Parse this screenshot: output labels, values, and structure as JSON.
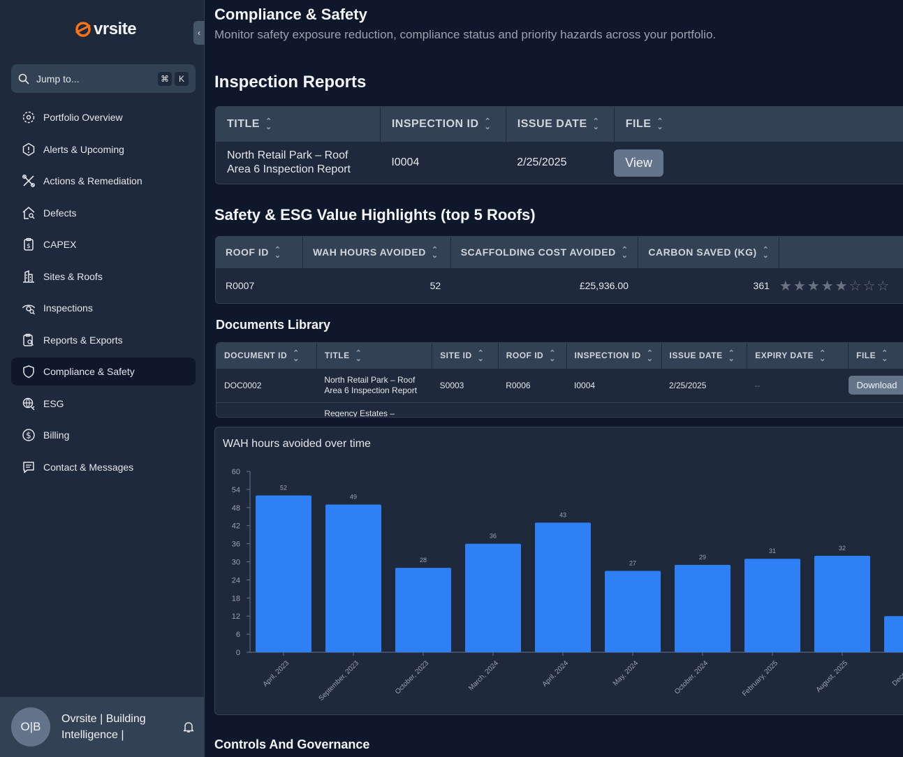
{
  "brand": {
    "name": "vrsite",
    "accent": "#f97316"
  },
  "search": {
    "placeholder": "Jump to...",
    "key1": "⌘",
    "key2": "K"
  },
  "nav": [
    {
      "label": "Portfolio Overview",
      "icon": "eye-icon"
    },
    {
      "label": "Alerts & Upcoming",
      "icon": "alert-icon"
    },
    {
      "label": "Actions & Remediation",
      "icon": "tools-icon"
    },
    {
      "label": "Defects",
      "icon": "house-search-icon"
    },
    {
      "label": "CAPEX",
      "icon": "budget-icon"
    },
    {
      "label": "Sites & Roofs",
      "icon": "building-icon"
    },
    {
      "label": "Inspections",
      "icon": "inspect-icon"
    },
    {
      "label": "Reports & Exports",
      "icon": "report-icon"
    },
    {
      "label": "Compliance & Safety",
      "icon": "shield-icon",
      "active": true
    },
    {
      "label": "ESG",
      "icon": "esg-icon"
    },
    {
      "label": "Billing",
      "icon": "dollar-icon"
    },
    {
      "label": "Contact & Messages",
      "icon": "message-icon"
    }
  ],
  "user": {
    "initials": "O|B",
    "name": "Ovrsite | Building Intelligence |"
  },
  "page": {
    "title": "Compliance & Safety",
    "subtitle": "Monitor safety exposure reduction, compliance status and priority hazards across your portfolio."
  },
  "inspection_reports": {
    "heading": "Inspection Reports",
    "columns": [
      "TITLE",
      "INSPECTION ID",
      "ISSUE DATE",
      "FILE"
    ],
    "row": {
      "title": "North Retail Park – Roof Area 6 Inspection Report",
      "inspection_id": "I0004",
      "issue_date": "2/25/2025",
      "file_button": "View"
    }
  },
  "highlights": {
    "heading": "Safety & ESG Value Highlights (top 5 Roofs)",
    "columns": [
      "ROOF ID",
      "WAH HOURS AVOIDED",
      "SCAFFOLDING COST AVOIDED",
      "CARBON SAVED (KG)"
    ],
    "row": {
      "roof_id": "R0007",
      "wah_hours": "52",
      "scaffolding_cost": "£25,936.00",
      "carbon_saved": "361",
      "rating": 5,
      "rating_max": 8
    }
  },
  "documents": {
    "heading": "Documents Library",
    "columns": [
      "DOCUMENT ID",
      "TITLE",
      "SITE ID",
      "ROOF ID",
      "INSPECTION ID",
      "ISSUE DATE",
      "EXPIRY DATE",
      "FILE"
    ],
    "rows": [
      {
        "document_id": "DOC0002",
        "title": "North Retail Park – Roof Area 6 Inspection Report",
        "site_id": "S0003",
        "roof_id": "R0006",
        "inspection_id": "I0004",
        "issue_date": "2/25/2025",
        "expiry_date": "--",
        "file_button": "Download"
      },
      {
        "document_id": "",
        "title": "Regency Estates –",
        "site_id": "",
        "roof_id": "",
        "inspection_id": "",
        "issue_date": "",
        "expiry_date": "",
        "file_button": ""
      }
    ]
  },
  "chart_title": "WAH hours avoided over time",
  "chart_data": {
    "type": "bar",
    "title": "WAH hours avoided over time",
    "categories": [
      "April, 2023",
      "September, 2023",
      "October, 2023",
      "March, 2024",
      "April, 2024",
      "May, 2024",
      "October, 2024",
      "February, 2025",
      "August, 2025",
      "December"
    ],
    "values": [
      52,
      49,
      28,
      36,
      43,
      27,
      29,
      31,
      32,
      12
    ],
    "data_labels": [
      "52",
      "49",
      "28",
      "36",
      "43",
      "27",
      "29",
      "31",
      "32",
      ""
    ],
    "ylim": [
      0,
      60
    ],
    "yticks": [
      0,
      6,
      12,
      18,
      24,
      30,
      36,
      42,
      48,
      54,
      60
    ],
    "bar_color": "#2f7ff5"
  },
  "controls": {
    "heading": "Controls And Governance"
  }
}
